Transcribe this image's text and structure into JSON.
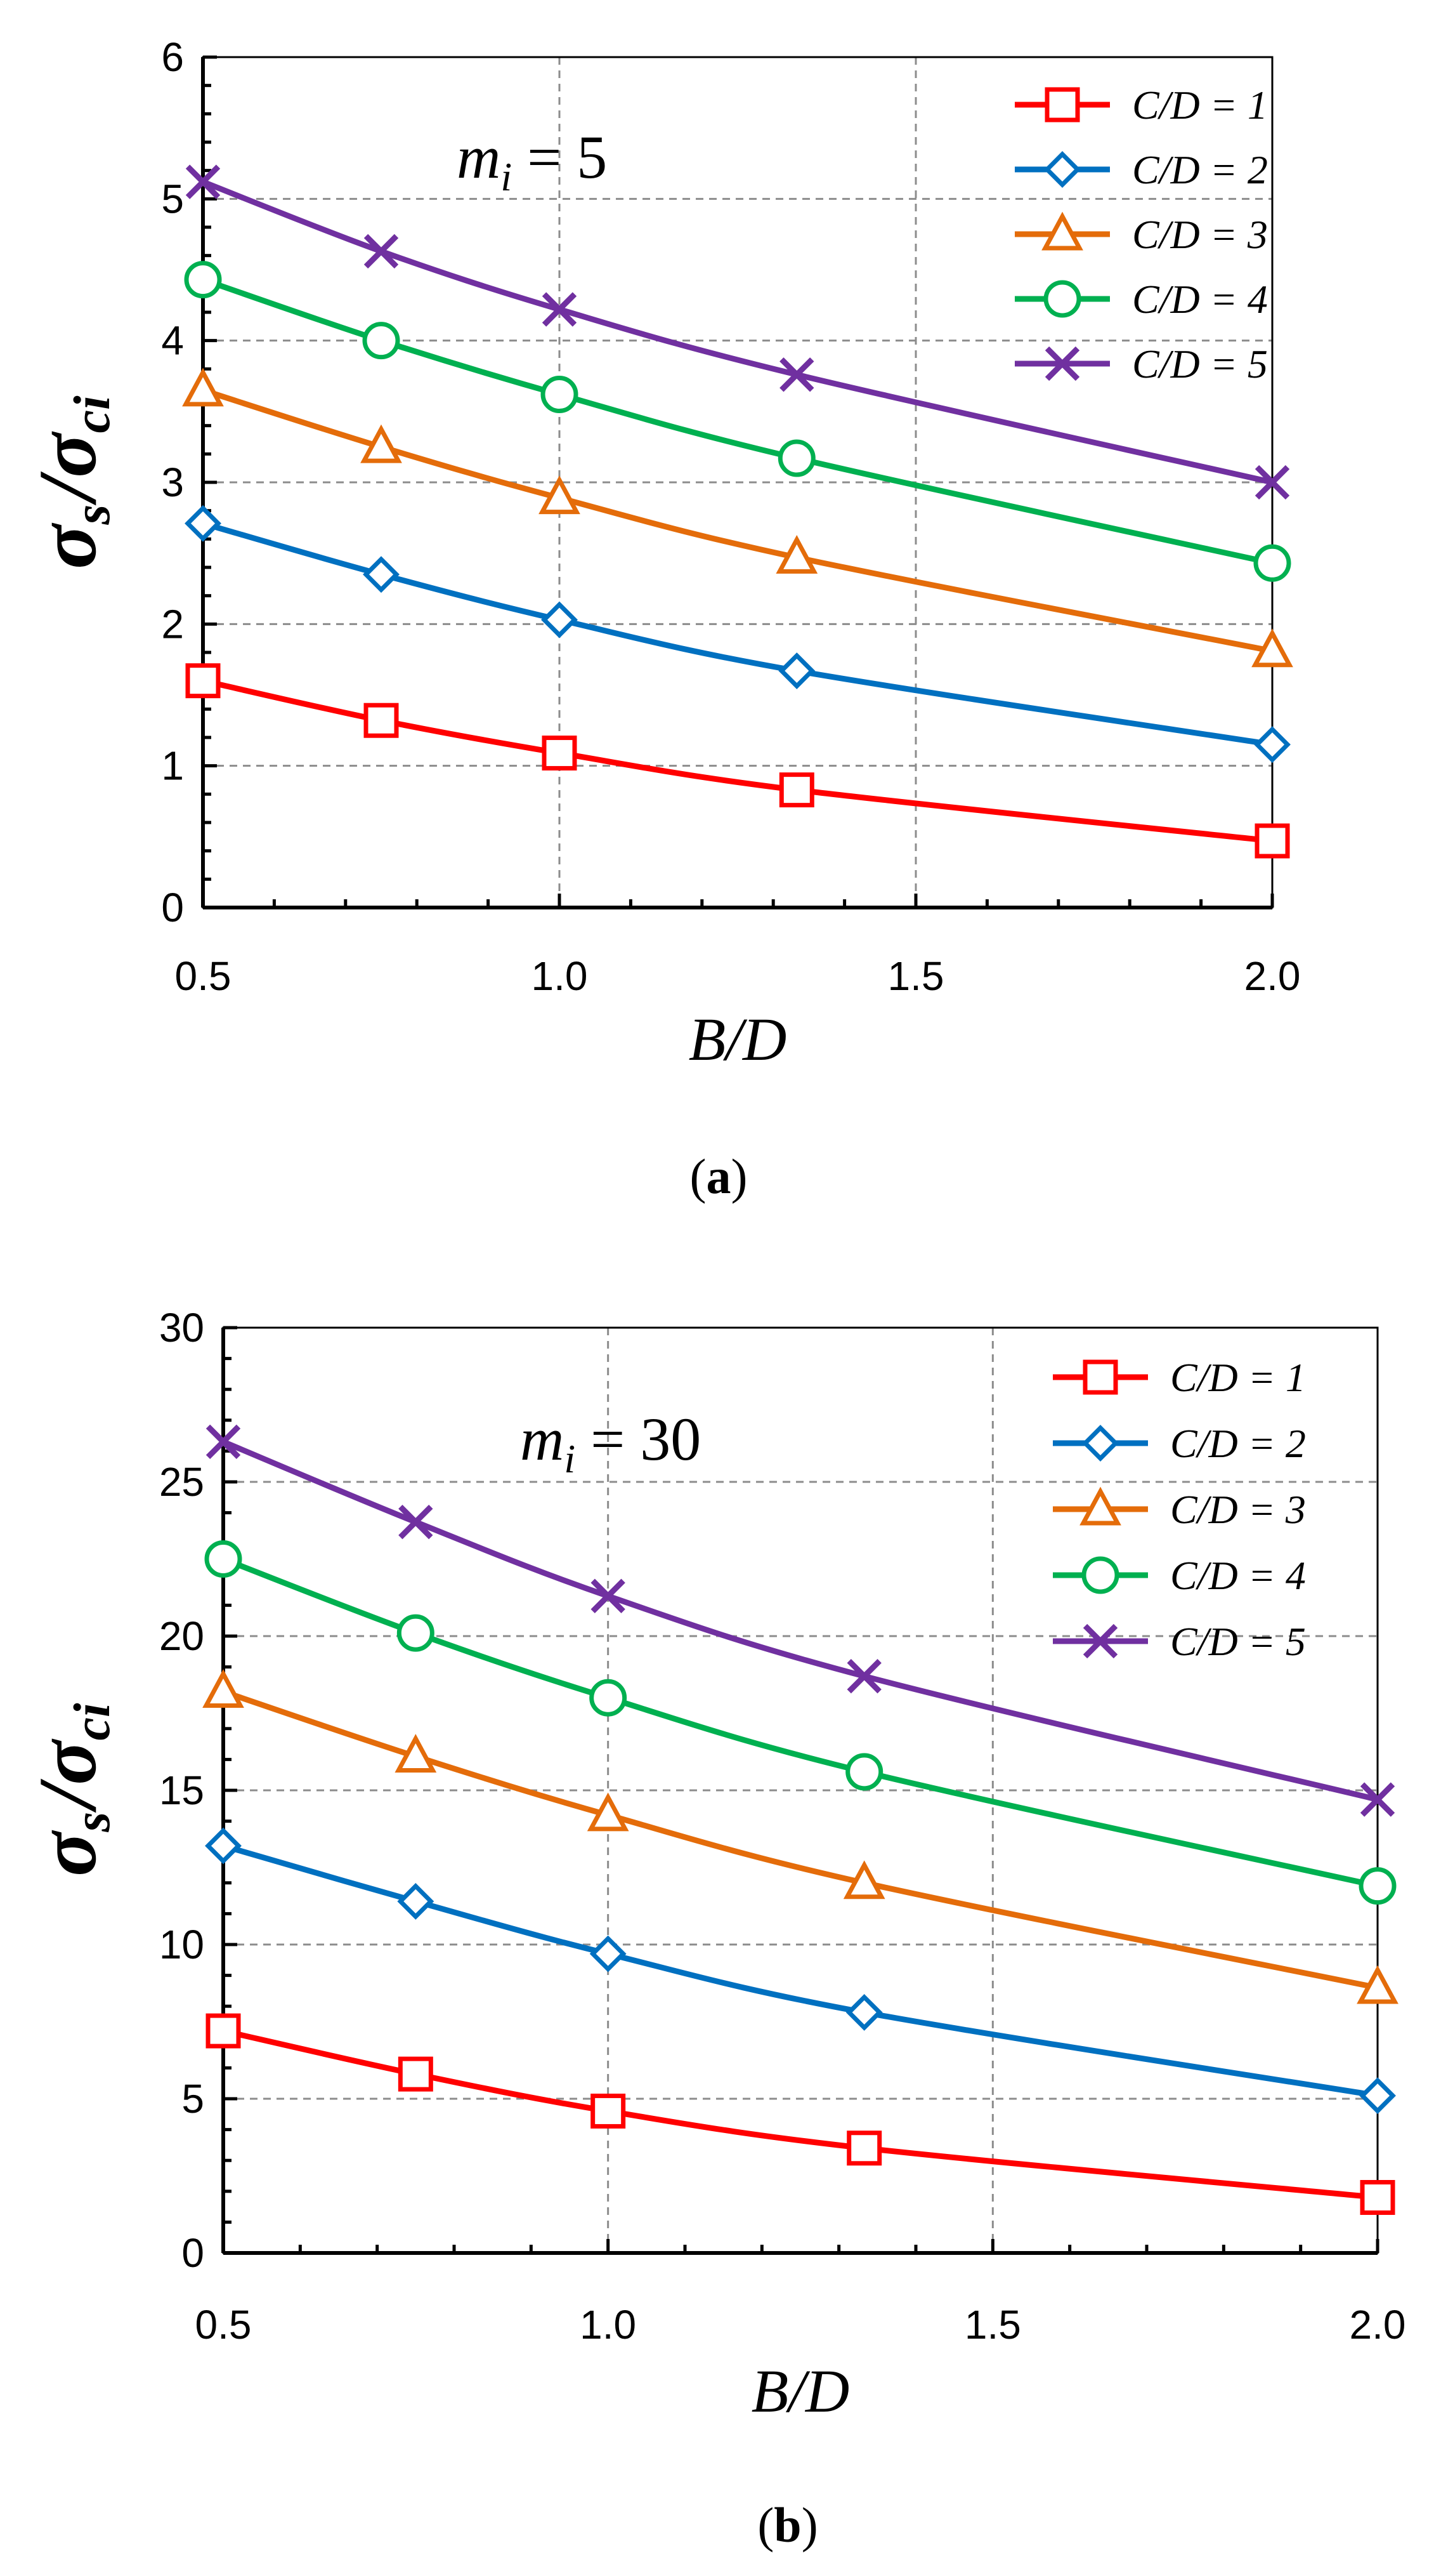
{
  "colors": {
    "red": "#ff0000",
    "blue": "#0070c0",
    "orange": "#e46c0a",
    "green": "#00b050",
    "purple": "#7030a0"
  },
  "chart_data": [
    {
      "type": "line",
      "panel_label": "a",
      "annotation": {
        "var": "m",
        "sub": "i",
        "rest": " = 5"
      },
      "xlabel": "B/D",
      "ylabel": {
        "main": "σ",
        "sub1": "s",
        "slash": "/",
        "main2": "σ",
        "sub2": "ci"
      },
      "xlim": [
        0.5,
        2.0
      ],
      "ylim": [
        0,
        6
      ],
      "xticks": [
        0.5,
        1.0,
        1.5,
        2.0
      ],
      "xtick_labels": [
        "0.5",
        "1.0",
        "1.5",
        "2.0"
      ],
      "yticks": [
        0,
        1,
        2,
        3,
        4,
        5,
        6
      ],
      "ytick_labels": [
        "0",
        "1",
        "2",
        "3",
        "4",
        "5",
        "6"
      ],
      "x": [
        0.5,
        0.75,
        1.0,
        1.333,
        2.0
      ],
      "legend_position": "top-right",
      "series": [
        {
          "name": "C/D = 1",
          "color": "red",
          "marker": "square",
          "values": [
            1.6,
            1.32,
            1.09,
            0.83,
            0.47
          ]
        },
        {
          "name": "C/D = 2",
          "color": "blue",
          "marker": "diamond",
          "values": [
            2.71,
            2.35,
            2.03,
            1.67,
            1.15
          ]
        },
        {
          "name": "C/D = 3",
          "color": "orange",
          "marker": "triangle",
          "values": [
            3.65,
            3.25,
            2.89,
            2.47,
            1.81
          ]
        },
        {
          "name": "C/D = 4",
          "color": "green",
          "marker": "circle",
          "values": [
            4.43,
            4.0,
            3.62,
            3.17,
            2.43
          ]
        },
        {
          "name": "C/D = 5",
          "color": "purple",
          "marker": "cross",
          "values": [
            5.12,
            4.63,
            4.22,
            3.76,
            3.0
          ]
        }
      ]
    },
    {
      "type": "line",
      "panel_label": "b",
      "annotation": {
        "var": "m",
        "sub": "i",
        "rest": " = 30"
      },
      "xlabel": "B/D",
      "ylabel": {
        "main": "σ",
        "sub1": "s",
        "slash": "/",
        "main2": "σ",
        "sub2": "ci"
      },
      "xlim": [
        0.5,
        2.0
      ],
      "ylim": [
        0,
        30
      ],
      "xticks": [
        0.5,
        1.0,
        1.5,
        2.0
      ],
      "xtick_labels": [
        "0.5",
        "1.0",
        "1.5",
        "2.0"
      ],
      "yticks": [
        0,
        5,
        10,
        15,
        20,
        25,
        30
      ],
      "ytick_labels": [
        "0",
        "5",
        "10",
        "15",
        "20",
        "25",
        "30"
      ],
      "x": [
        0.5,
        0.75,
        1.0,
        1.333,
        2.0
      ],
      "legend_position": "top-right",
      "series": [
        {
          "name": "C/D = 1",
          "color": "red",
          "marker": "square",
          "values": [
            7.2,
            5.8,
            4.6,
            3.4,
            1.8
          ]
        },
        {
          "name": "C/D = 2",
          "color": "blue",
          "marker": "diamond",
          "values": [
            13.2,
            11.4,
            9.7,
            7.8,
            5.1
          ]
        },
        {
          "name": "C/D = 3",
          "color": "orange",
          "marker": "triangle",
          "values": [
            18.2,
            16.1,
            14.2,
            12.0,
            8.6
          ]
        },
        {
          "name": "C/D = 4",
          "color": "green",
          "marker": "circle",
          "values": [
            22.5,
            20.1,
            18.0,
            15.6,
            11.9
          ]
        },
        {
          "name": "C/D = 5",
          "color": "purple",
          "marker": "cross",
          "values": [
            26.3,
            23.7,
            21.3,
            18.7,
            14.7
          ]
        }
      ]
    }
  ]
}
